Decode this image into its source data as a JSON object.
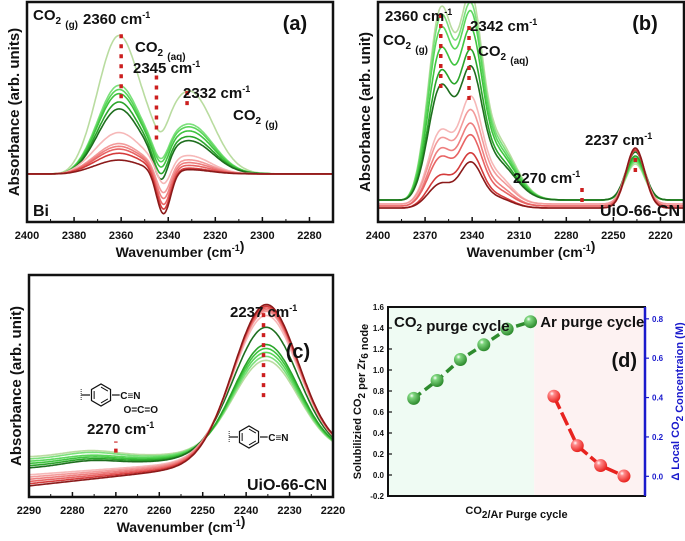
{
  "colors": {
    "green_series": [
      "#b9dca0",
      "#7be07b",
      "#5ad65a",
      "#3fc43f",
      "#2aa52a",
      "#1e6e1e"
    ],
    "red_series": [
      "#f6b8b8",
      "#f39a9a",
      "#ee7f7f",
      "#e86363",
      "#d43b3b",
      "#8b1a1a"
    ],
    "marker_line": "#cc1f1f",
    "green_marker": "#2e8b2e",
    "red_marker": "#e8231f",
    "right_axis": "#1a1acc",
    "bg_green": "#effbf3",
    "bg_red": "#fdf2f2"
  },
  "chart_data": [
    {
      "id": "a",
      "type": "line",
      "panel_label": "(a)",
      "xlabel": "Wavenumber (cm⁻¹)",
      "ylabel": "Absorbance (arb. units)",
      "xlim": [
        2400,
        2270
      ],
      "xticks": [
        2400,
        2380,
        2360,
        2340,
        2320,
        2300,
        2280
      ],
      "ylim": [
        -0.35,
        1.25
      ],
      "sample_label": "Bi",
      "annotations": [
        {
          "text": "CO₂ (g)",
          "pos": "top-left"
        },
        {
          "text": "2360 cm⁻¹",
          "x": 2360
        },
        {
          "text": "CO₂ (aq)",
          "x": 2345
        },
        {
          "text": "2345 cm⁻¹",
          "x": 2345
        },
        {
          "text": "2332 cm⁻¹",
          "x": 2332
        },
        {
          "text": "CO₂ (g)",
          "x": 2320
        }
      ],
      "marker_lines": [
        {
          "x": 2360,
          "y_from": 0.55,
          "y_to": 1.05
        },
        {
          "x": 2345,
          "y_from": 0.25,
          "y_to": 0.72
        },
        {
          "x": 2332,
          "y_from": 0.5,
          "y_to": 0.62
        }
      ],
      "series": [
        {
          "name": "green-1",
          "peaks": [
            [
              2361,
              1.0,
              9
            ],
            [
              2331,
              0.6,
              10
            ],
            [
              2343,
              -0.12,
              3
            ]
          ]
        },
        {
          "name": "green-2",
          "peaks": [
            [
              2361,
              0.64,
              9
            ],
            [
              2331,
              0.36,
              10
            ],
            [
              2343,
              -0.15,
              3
            ]
          ]
        },
        {
          "name": "green-3",
          "peaks": [
            [
              2361,
              0.61,
              9
            ],
            [
              2331,
              0.34,
              10
            ],
            [
              2343,
              -0.16,
              3
            ]
          ]
        },
        {
          "name": "green-4",
          "peaks": [
            [
              2361,
              0.58,
              9
            ],
            [
              2331,
              0.31,
              10
            ],
            [
              2343,
              -0.18,
              3
            ]
          ]
        },
        {
          "name": "green-5",
          "peaks": [
            [
              2361,
              0.52,
              9
            ],
            [
              2331,
              0.27,
              10
            ],
            [
              2343,
              -0.2,
              3
            ]
          ]
        },
        {
          "name": "green-6",
          "peaks": [
            [
              2361,
              0.47,
              9
            ],
            [
              2331,
              0.24,
              10
            ],
            [
              2343,
              -0.22,
              3
            ]
          ]
        },
        {
          "name": "red-1",
          "peaks": [
            [
              2361,
              0.3,
              10
            ],
            [
              2331,
              0.13,
              9
            ],
            [
              2342,
              -0.18,
              3
            ]
          ]
        },
        {
          "name": "red-2",
          "peaks": [
            [
              2361,
              0.22,
              10
            ],
            [
              2331,
              0.1,
              9
            ],
            [
              2342,
              -0.22,
              3
            ]
          ]
        },
        {
          "name": "red-3",
          "peaks": [
            [
              2361,
              0.2,
              10
            ],
            [
              2331,
              0.08,
              9
            ],
            [
              2342,
              -0.25,
              3
            ]
          ]
        },
        {
          "name": "red-4",
          "peaks": [
            [
              2361,
              0.18,
              10
            ],
            [
              2331,
              0.06,
              9
            ],
            [
              2342,
              -0.28,
              3
            ]
          ]
        },
        {
          "name": "red-5",
          "peaks": [
            [
              2361,
              0.15,
              10
            ],
            [
              2331,
              0.04,
              9
            ],
            [
              2342,
              -0.3,
              3
            ]
          ]
        },
        {
          "name": "red-6",
          "peaks": [
            [
              2361,
              0.1,
              10
            ],
            [
              2331,
              0.03,
              9
            ],
            [
              2342,
              -0.32,
              3
            ]
          ]
        }
      ]
    },
    {
      "id": "b",
      "type": "line",
      "panel_label": "(b)",
      "xlabel": "Wavenumber (cm⁻¹)",
      "ylabel": "Absorbance (arb. unit)",
      "xlim": [
        2400,
        2205
      ],
      "xticks": [
        2400,
        2370,
        2340,
        2310,
        2280,
        2250,
        2220
      ],
      "ylim": [
        -0.05,
        1.05
      ],
      "sample_label": "UiO-66-CN",
      "annotations": [
        {
          "text": "2360 cm⁻¹",
          "x": 2360
        },
        {
          "text": "CO₂ (g)",
          "x": 2360
        },
        {
          "text": "2342 cm⁻¹",
          "x": 2342
        },
        {
          "text": "CO₂ (aq)",
          "x": 2342
        },
        {
          "text": "2270 cm⁻¹",
          "x": 2270
        },
        {
          "text": "2237 cm⁻¹",
          "x": 2236
        }
      ],
      "marker_lines": [
        {
          "x": 2360,
          "y_from": 0.62,
          "y_to": 1.0
        },
        {
          "x": 2342,
          "y_from": 0.56,
          "y_to": 0.93
        },
        {
          "x": 2270,
          "y_from": 0.05,
          "y_to": 0.13
        },
        {
          "x": 2236,
          "y_from": 0.2,
          "y_to": 0.3
        }
      ],
      "series": [
        {
          "name": "green-1",
          "base": 0.06,
          "peaks": [
            [
              2360,
              0.94,
              8
            ],
            [
              2341,
              0.86,
              7
            ],
            [
              2325,
              0.3,
              12
            ],
            [
              2236,
              0.18,
              6
            ]
          ]
        },
        {
          "name": "green-2",
          "base": 0.06,
          "peaks": [
            [
              2360,
              0.9,
              8
            ],
            [
              2341,
              0.82,
              7
            ],
            [
              2325,
              0.28,
              12
            ],
            [
              2236,
              0.19,
              6
            ]
          ]
        },
        {
          "name": "green-3",
          "base": 0.06,
          "peaks": [
            [
              2360,
              0.84,
              8
            ],
            [
              2341,
              0.79,
              7
            ],
            [
              2325,
              0.26,
              12
            ],
            [
              2236,
              0.2,
              6
            ]
          ]
        },
        {
          "name": "green-4",
          "base": 0.06,
          "peaks": [
            [
              2360,
              0.74,
              8
            ],
            [
              2341,
              0.72,
              7
            ],
            [
              2325,
              0.24,
              12
            ],
            [
              2236,
              0.21,
              6
            ]
          ]
        },
        {
          "name": "green-5",
          "base": 0.06,
          "peaks": [
            [
              2360,
              0.63,
              8
            ],
            [
              2341,
              0.63,
              7
            ],
            [
              2325,
              0.21,
              12
            ],
            [
              2236,
              0.22,
              6
            ]
          ]
        },
        {
          "name": "green-6",
          "base": 0.06,
          "peaks": [
            [
              2360,
              0.56,
              8
            ],
            [
              2341,
              0.56,
              7
            ],
            [
              2325,
              0.19,
              12
            ],
            [
              2236,
              0.24,
              6
            ]
          ]
        },
        {
          "name": "red-1",
          "base": 0.04,
          "peaks": [
            [
              2360,
              0.36,
              8
            ],
            [
              2341,
              0.48,
              7
            ],
            [
              2325,
              0.14,
              10
            ],
            [
              2236,
              0.27,
              6
            ]
          ]
        },
        {
          "name": "red-2",
          "base": 0.04,
          "peaks": [
            [
              2360,
              0.32,
              8
            ],
            [
              2341,
              0.42,
              7
            ],
            [
              2325,
              0.12,
              10
            ],
            [
              2236,
              0.27,
              6
            ]
          ]
        },
        {
          "name": "red-3",
          "base": 0.03,
          "peaks": [
            [
              2360,
              0.28,
              8
            ],
            [
              2341,
              0.37,
              7
            ],
            [
              2325,
              0.1,
              10
            ],
            [
              2236,
              0.28,
              6
            ]
          ]
        },
        {
          "name": "red-4",
          "base": 0.03,
          "peaks": [
            [
              2360,
              0.24,
              8
            ],
            [
              2341,
              0.32,
              7
            ],
            [
              2325,
              0.08,
              10
            ],
            [
              2236,
              0.28,
              6
            ]
          ]
        },
        {
          "name": "red-5",
          "base": 0.02,
          "peaks": [
            [
              2360,
              0.16,
              8
            ],
            [
              2341,
              0.25,
              7
            ],
            [
              2325,
              0.06,
              10
            ],
            [
              2236,
              0.29,
              6
            ]
          ]
        },
        {
          "name": "red-6",
          "base": 0.02,
          "peaks": [
            [
              2360,
              0.12,
              8
            ],
            [
              2341,
              0.21,
              7
            ],
            [
              2325,
              0.05,
              10
            ],
            [
              2236,
              0.3,
              6
            ]
          ]
        }
      ]
    },
    {
      "id": "c",
      "type": "line",
      "panel_label": "(c)",
      "xlabel": "Wavenumber (cm⁻¹)",
      "ylabel": "Absorbance (arb. unit)",
      "xlim": [
        2290,
        2220
      ],
      "xticks": [
        2290,
        2280,
        2270,
        2260,
        2250,
        2240,
        2230,
        2220
      ],
      "ylim": [
        0,
        1.0
      ],
      "sample_label": "UiO-66-CN",
      "annotations": [
        {
          "text": "2237 cm⁻¹",
          "x": 2236
        },
        {
          "text": "2270 cm⁻¹",
          "x": 2270
        }
      ],
      "structures": [
        {
          "label": "C≡N",
          "extra": "O=C=O",
          "pos": "left"
        },
        {
          "label": "C≡N",
          "pos": "right"
        }
      ],
      "marker_lines": [
        {
          "x": 2236,
          "y_from": 0.45,
          "y_to": 0.83
        },
        {
          "x": 2270,
          "y_from": 0.2,
          "y_to": 0.25
        }
      ],
      "series": [
        {
          "name": "green-1",
          "base": [
            0.18,
            0.2
          ],
          "peaks": [
            [
              2235.5,
              0.42,
              7.5
            ],
            [
              2276,
              0.025,
              6
            ]
          ]
        },
        {
          "name": "green-2",
          "base": [
            0.17,
            0.2
          ],
          "peaks": [
            [
              2235.5,
              0.44,
              7.5
            ],
            [
              2276,
              0.025,
              6
            ]
          ]
        },
        {
          "name": "green-3",
          "base": [
            0.16,
            0.2
          ],
          "peaks": [
            [
              2235.5,
              0.46,
              7.5
            ],
            [
              2276,
              0.02,
              6
            ]
          ]
        },
        {
          "name": "green-4",
          "base": [
            0.15,
            0.2
          ],
          "peaks": [
            [
              2235.5,
              0.48,
              7.5
            ],
            [
              2276,
              0.02,
              6
            ]
          ]
        },
        {
          "name": "green-5",
          "base": [
            0.14,
            0.2
          ],
          "peaks": [
            [
              2235.5,
              0.5,
              7.5
            ],
            [
              2276,
              0.02,
              6
            ]
          ]
        },
        {
          "name": "green-6",
          "base": [
            0.13,
            0.2
          ],
          "peaks": [
            [
              2235.5,
              0.58,
              7.5
            ],
            [
              2276,
              0.02,
              6
            ]
          ]
        },
        {
          "name": "red-1",
          "base": [
            0.1,
            0.2
          ],
          "peaks": [
            [
              2235.5,
              0.64,
              7.5
            ]
          ]
        },
        {
          "name": "red-2",
          "base": [
            0.09,
            0.2
          ],
          "peaks": [
            [
              2235.5,
              0.66,
              7.5
            ]
          ]
        },
        {
          "name": "red-3",
          "base": [
            0.08,
            0.2
          ],
          "peaks": [
            [
              2235.5,
              0.67,
              7.5
            ]
          ]
        },
        {
          "name": "red-4",
          "base": [
            0.07,
            0.2
          ],
          "peaks": [
            [
              2235.5,
              0.68,
              7.5
            ]
          ]
        },
        {
          "name": "red-5",
          "base": [
            0.06,
            0.2
          ],
          "peaks": [
            [
              2235.5,
              0.69,
              7.5
            ]
          ]
        },
        {
          "name": "red-6",
          "base": [
            0.05,
            0.2
          ],
          "peaks": [
            [
              2235.5,
              0.7,
              7.5
            ]
          ]
        }
      ]
    },
    {
      "id": "d",
      "type": "scatter",
      "panel_label": "(d)",
      "xlabel": "CO₂/Ar Purge cycle",
      "ylabel": "Solubilizied CO₂ per Zr₆ node",
      "ylabel_right": "Δ Local CO₂ Concentraion (M)",
      "ylim": [
        -0.2,
        1.6
      ],
      "yticks": [
        -0.2,
        0.0,
        0.2,
        0.4,
        0.6,
        0.8,
        1.0,
        1.2,
        1.4,
        1.6
      ],
      "ylim_right": [
        -0.1,
        0.86
      ],
      "yticks_right": [
        0.0,
        0.2,
        0.4,
        0.6,
        0.8
      ],
      "region_labels": [
        "CO₂ purge cycle",
        "Ar purge cycle"
      ],
      "series": [
        {
          "name": "CO2 purge cycle",
          "x": [
            1,
            2,
            3,
            4,
            5,
            6
          ],
          "values": [
            0.73,
            0.9,
            1.1,
            1.24,
            1.39,
            1.46
          ]
        },
        {
          "name": "Ar purge cycle",
          "x": [
            7,
            8,
            9,
            10
          ],
          "values": [
            0.75,
            0.28,
            0.09,
            -0.01
          ]
        }
      ]
    }
  ]
}
